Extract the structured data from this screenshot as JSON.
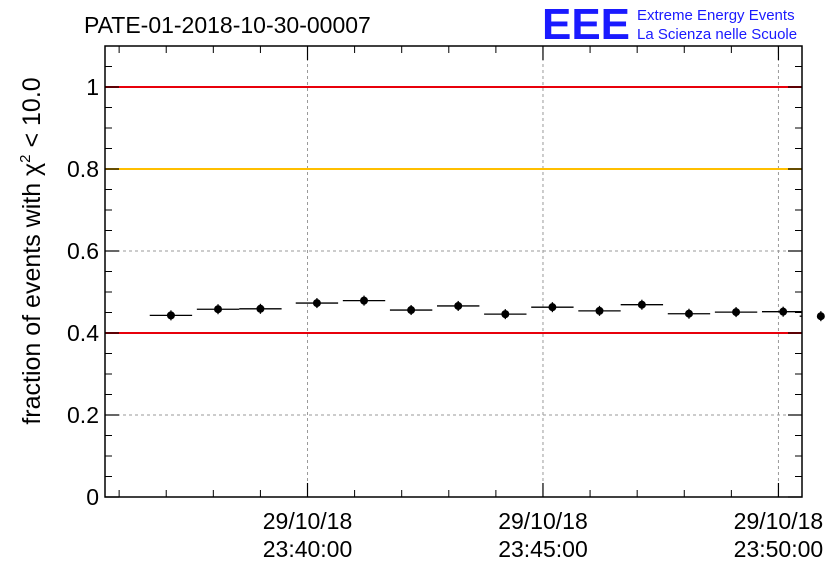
{
  "chart_data": {
    "type": "scatter",
    "title": "PATE-01-2018-10-30-00007",
    "ylabel_main": "fraction of events with χ",
    "ylabel_sup": "2",
    "ylabel_tail": " < 10.0",
    "xlabel": "",
    "ylim": [
      0,
      1.1
    ],
    "yticks": [
      0,
      0.2,
      0.4,
      0.6,
      0.8,
      1
    ],
    "ytick_labels": [
      "0",
      "0.2",
      "0.4",
      "0.6",
      "0.8",
      "1"
    ],
    "xlim_minutes": [
      -4.3,
      10.5
    ],
    "xticks": [
      {
        "minute": 0,
        "date": "29/10/18",
        "time": "23:40:00"
      },
      {
        "minute": 5,
        "date": "29/10/18",
        "time": "23:45:00"
      },
      {
        "minute": 10,
        "date": "29/10/18",
        "time": "23:50:00"
      }
    ],
    "x_minor_step_minutes": 1,
    "grid": true,
    "bin_width_minutes": 0.9,
    "series": [
      {
        "name": "fraction",
        "x_minutes": [
          -2.9,
          -1.9,
          -1.0,
          0.2,
          1.2,
          2.2,
          3.2,
          4.2,
          5.2,
          6.2,
          7.1,
          8.1,
          9.1,
          10.1,
          10.9
        ],
        "values": [
          0.443,
          0.458,
          0.459,
          0.473,
          0.479,
          0.456,
          0.466,
          0.446,
          0.463,
          0.454,
          0.469,
          0.447,
          0.451,
          0.452,
          0.441
        ]
      }
    ],
    "reference_lines": [
      {
        "value": 1.0,
        "color": "#e8000b"
      },
      {
        "value": 0.8,
        "color": "#ffbf00"
      },
      {
        "value": 0.4,
        "color": "#e8000b"
      }
    ]
  },
  "logo": {
    "mark": "EEE",
    "line1": "Extreme Energy Events",
    "line2": "La Scienza nelle Scuole"
  }
}
